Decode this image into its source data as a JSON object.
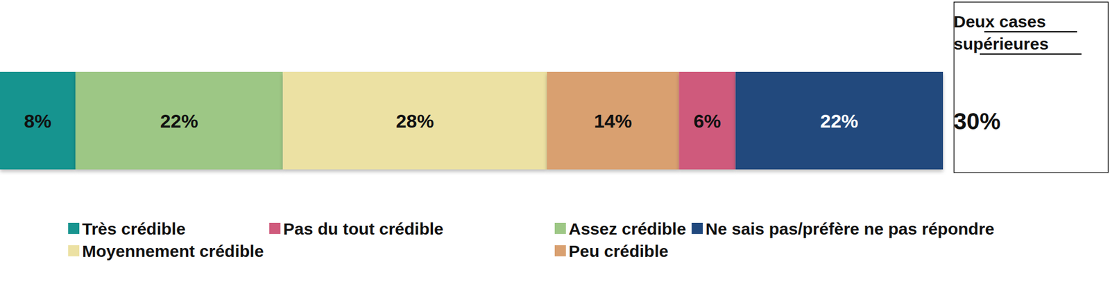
{
  "chart_data": {
    "type": "bar",
    "orientation": "horizontal",
    "stacked": true,
    "data_labels": true,
    "tick_labels": false,
    "xlim": [
      0,
      100
    ],
    "categories": [
      null
    ],
    "series": [
      {
        "name": "Très crédible",
        "color": "#17948f",
        "values": [
          8
        ],
        "value_labels": [
          "8%"
        ]
      },
      {
        "name": "Assez crédible",
        "color": "#9dc785",
        "values": [
          22
        ],
        "value_labels": [
          "22%"
        ]
      },
      {
        "name": "Moyennement crédible",
        "color": "#ece1a3",
        "values": [
          28
        ],
        "value_labels": [
          "28%"
        ]
      },
      {
        "name": "Peu crédible",
        "color": "#d9a070",
        "values": [
          14
        ],
        "value_labels": [
          "14%"
        ]
      },
      {
        "name": "Pas du tout crédible",
        "color": "#cf5a7c",
        "values": [
          6
        ],
        "value_labels": [
          "6%"
        ]
      },
      {
        "name": "Ne sais pas/préfère ne pas répondre",
        "color": "#20487d",
        "values": [
          22
        ],
        "value_labels": [
          "22%"
        ]
      }
    ],
    "annotations": [
      {
        "title": "Deux cases supérieures",
        "value": 30,
        "label": "30%"
      }
    ]
  }
}
